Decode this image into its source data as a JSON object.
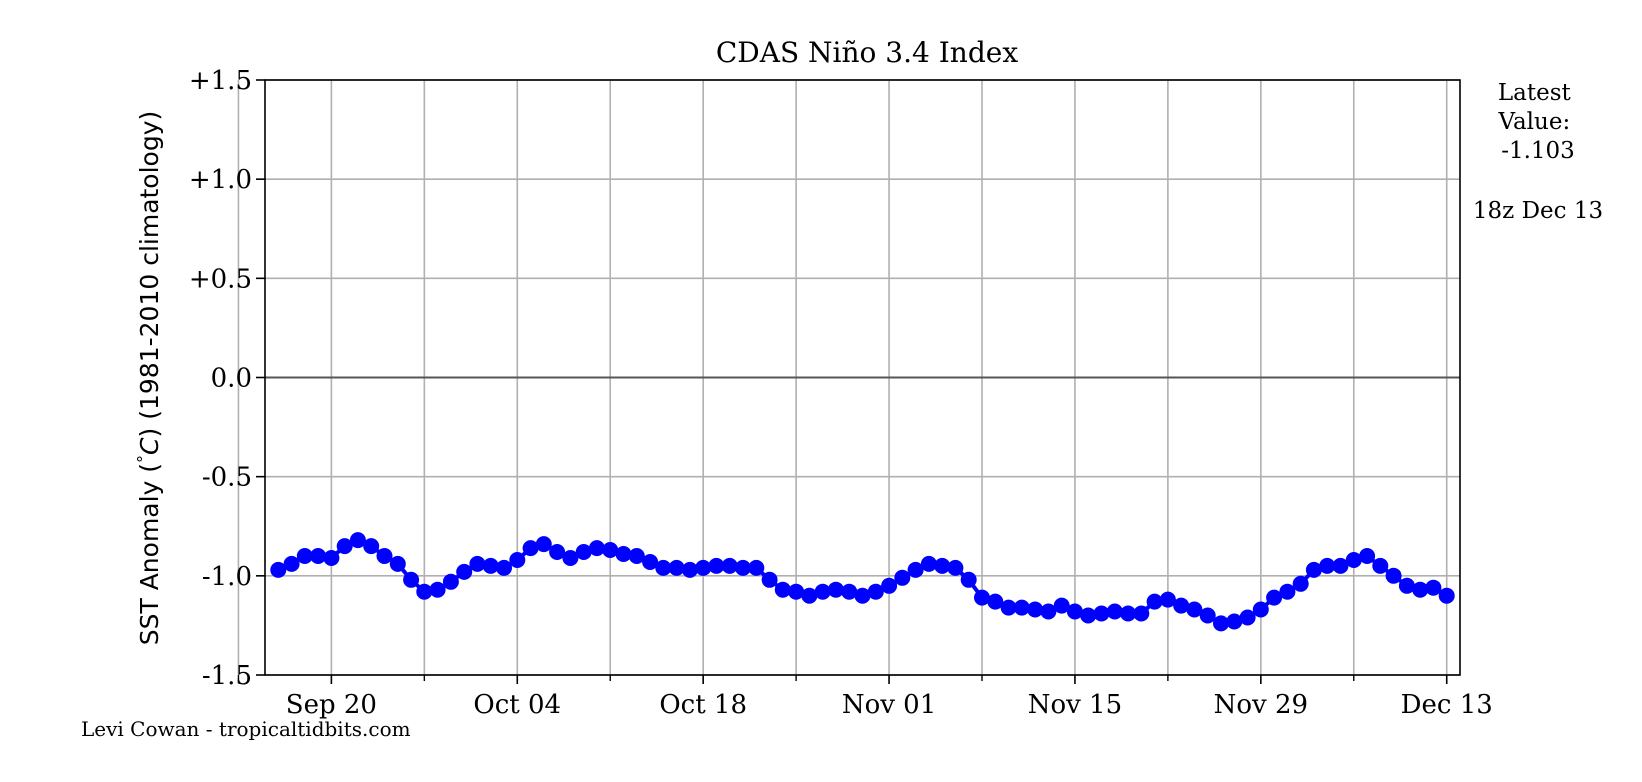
{
  "chart_data": {
    "type": "line",
    "title": "CDAS Niño 3.4 Index",
    "xlabel": "",
    "ylabel": "SST Anomaly (°C) (1981-2010 climatology)",
    "ylabel_parts": {
      "prefix": "SST Anomaly (",
      "symbol": "°",
      "unit": "C",
      "suffix": ") (1981-2010 climatology)"
    },
    "ylim": [
      -1.5,
      1.5
    ],
    "yticks": [
      1.5,
      1.0,
      0.5,
      0.0,
      -0.5,
      -1.0,
      -1.5
    ],
    "ytick_labels": [
      "+1.5",
      "+1.0",
      "+0.5",
      "0.0",
      "-0.5",
      "-1.0",
      "-1.5"
    ],
    "xlim": [
      "2020-09-15",
      "2020-12-14"
    ],
    "xticks_major": [
      {
        "date": "2020-09-20",
        "label": "Sep 20"
      },
      {
        "date": "2020-10-04",
        "label": "Oct 04"
      },
      {
        "date": "2020-10-18",
        "label": "Oct 18"
      },
      {
        "date": "2020-11-01",
        "label": "Nov 01"
      },
      {
        "date": "2020-11-15",
        "label": "Nov 15"
      },
      {
        "date": "2020-11-29",
        "label": "Nov 29"
      },
      {
        "date": "2020-12-13",
        "label": "Dec 13"
      }
    ],
    "xticks_minor": [
      "2020-09-13",
      "2020-09-27",
      "2020-10-11",
      "2020-10-25",
      "2020-11-08",
      "2020-11-22",
      "2020-12-06"
    ],
    "grid": true,
    "zero_line": true,
    "series": [
      {
        "color": "#0000ff",
        "start_date": "2020-09-16",
        "points_per_day": 1,
        "x": [
          "2020-09-16",
          "2020-09-17",
          "2020-09-18",
          "2020-09-19",
          "2020-09-20",
          "2020-09-21",
          "2020-09-22",
          "2020-09-23",
          "2020-09-24",
          "2020-09-25",
          "2020-09-26",
          "2020-09-27",
          "2020-09-28",
          "2020-09-29",
          "2020-09-30",
          "2020-10-01",
          "2020-10-02",
          "2020-10-03",
          "2020-10-04",
          "2020-10-05",
          "2020-10-06",
          "2020-10-07",
          "2020-10-08",
          "2020-10-09",
          "2020-10-10",
          "2020-10-11",
          "2020-10-12",
          "2020-10-13",
          "2020-10-14",
          "2020-10-15",
          "2020-10-16",
          "2020-10-17",
          "2020-10-18",
          "2020-10-19",
          "2020-10-20",
          "2020-10-21",
          "2020-10-22",
          "2020-10-23",
          "2020-10-24",
          "2020-10-25",
          "2020-10-26",
          "2020-10-27",
          "2020-10-28",
          "2020-10-29",
          "2020-10-30",
          "2020-10-31",
          "2020-11-01",
          "2020-11-02",
          "2020-11-03",
          "2020-11-04",
          "2020-11-05",
          "2020-11-06",
          "2020-11-07",
          "2020-11-08",
          "2020-11-09",
          "2020-11-10",
          "2020-11-11",
          "2020-11-12",
          "2020-11-13",
          "2020-11-14",
          "2020-11-15",
          "2020-11-16",
          "2020-11-17",
          "2020-11-18",
          "2020-11-19",
          "2020-11-20",
          "2020-11-21",
          "2020-11-22",
          "2020-11-23",
          "2020-11-24",
          "2020-11-25",
          "2020-11-26",
          "2020-11-27",
          "2020-11-28",
          "2020-11-29",
          "2020-11-30",
          "2020-12-01",
          "2020-12-02",
          "2020-12-03",
          "2020-12-04",
          "2020-12-05",
          "2020-12-06",
          "2020-12-07",
          "2020-12-08",
          "2020-12-09",
          "2020-12-10",
          "2020-12-11",
          "2020-12-12",
          "2020-12-13"
        ],
        "values": [
          -0.97,
          -0.94,
          -0.9,
          -0.9,
          -0.91,
          -0.85,
          -0.82,
          -0.85,
          -0.9,
          -0.94,
          -1.02,
          -1.08,
          -1.07,
          -1.03,
          -0.98,
          -0.94,
          -0.95,
          -0.96,
          -0.92,
          -0.86,
          -0.84,
          -0.88,
          -0.91,
          -0.88,
          -0.86,
          -0.87,
          -0.89,
          -0.9,
          -0.93,
          -0.96,
          -0.96,
          -0.97,
          -0.96,
          -0.95,
          -0.95,
          -0.96,
          -0.96,
          -1.02,
          -1.07,
          -1.08,
          -1.1,
          -1.08,
          -1.07,
          -1.08,
          -1.1,
          -1.08,
          -1.05,
          -1.01,
          -0.97,
          -0.94,
          -0.95,
          -0.96,
          -1.02,
          -1.11,
          -1.13,
          -1.16,
          -1.16,
          -1.17,
          -1.18,
          -1.15,
          -1.18,
          -1.2,
          -1.19,
          -1.18,
          -1.19,
          -1.19,
          -1.13,
          -1.12,
          -1.15,
          -1.17,
          -1.2,
          -1.24,
          -1.23,
          -1.21,
          -1.17,
          -1.11,
          -1.08,
          -1.04,
          -0.97,
          -0.95,
          -0.95,
          -0.92,
          -0.9,
          -0.95,
          -1.0,
          -1.05,
          -1.07,
          -1.06,
          -1.1
        ]
      }
    ],
    "latest_label": "Latest\nValue:\n-1.103",
    "latest_lines": [
      "Latest",
      "Value:",
      "-1.103"
    ],
    "latest_time": "18z Dec 13",
    "credit": "Levi Cowan - tropicaltidbits.com"
  }
}
